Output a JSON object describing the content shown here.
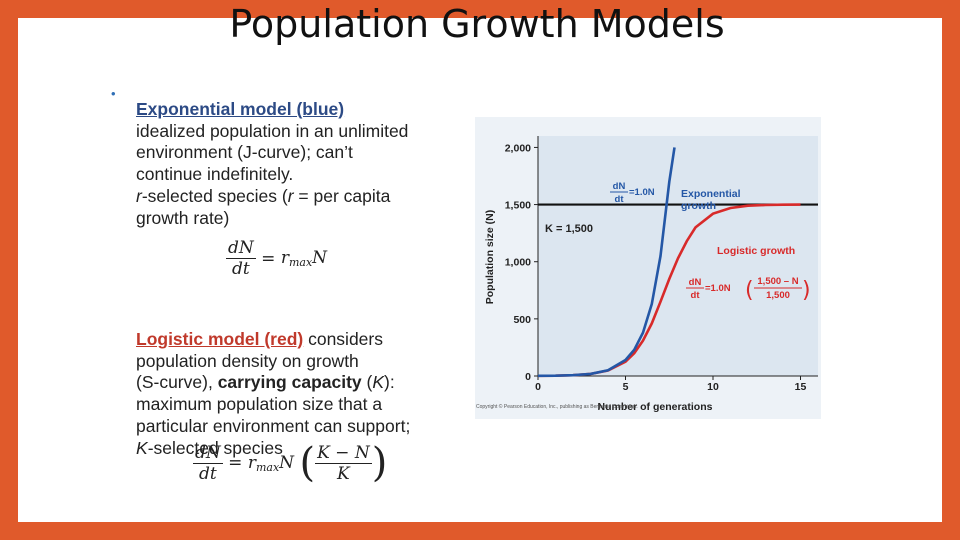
{
  "title": "Population Growth Models",
  "text": {
    "bullet": "•",
    "exp_heading": "Exponential model (blue)",
    "exp_l1": "idealized population in an unlimited",
    "exp_l2": "environment (J-curve); can’t",
    "exp_l3": "continue indefinitely.",
    "exp_l4_r": "r",
    "exp_l4_a": "-selected species (",
    "exp_l4_r2": "r",
    "exp_l4_b": " = per capita",
    "exp_l5": "growth rate)",
    "log_heading": "Logistic model (red)",
    "log_l1_tail": " considers",
    "log_l2": "population density on growth",
    "log_l3_a": "(S-curve), ",
    "log_l3_b": "carrying capacity",
    "log_l3_c": " (",
    "log_l3_k": "K",
    "log_l3_d": "):",
    "log_l4": "maximum population size that a",
    "log_l5": "particular environment can support;",
    "log_l6_k": "K",
    "log_l6_rest": "-selected species"
  },
  "equations": {
    "dN": "dN",
    "dt": "dt",
    "eq_sign": "=",
    "r": "r",
    "max": "max",
    "N": "N",
    "K_minus_N": "K − N",
    "K": "K",
    "lparen": "(",
    "rparen": ")"
  },
  "copyright": "Copyright © Pearson Education, Inc., publishing as Benjamin Cummings.",
  "chart_data": {
    "type": "line",
    "xlabel": "Number of generations",
    "ylabel": "Population size (N)",
    "xlim": [
      0,
      16
    ],
    "ylim": [
      0,
      2100
    ],
    "x_ticks": [
      0,
      5,
      10,
      15
    ],
    "y_ticks": [
      0,
      500,
      1000,
      1500,
      2000
    ],
    "y_tick_labels": [
      "0",
      "500",
      "1,000",
      "1,500",
      "2,000"
    ],
    "grid": false,
    "carrying_capacity": {
      "value": 1500,
      "label": "K = 1,500"
    },
    "series": [
      {
        "name": "Exponential growth",
        "color": "#2457a6",
        "x": [
          0,
          1,
          2,
          3,
          4,
          5,
          5.5,
          6,
          6.5,
          7,
          7.5,
          7.8
        ],
        "y": [
          2,
          3,
          7,
          18,
          50,
          140,
          230,
          380,
          630,
          1050,
          1700,
          2000
        ]
      },
      {
        "name": "Logistic growth",
        "color": "#d82a2a",
        "x": [
          0,
          1,
          2,
          3,
          4,
          5,
          5.5,
          6,
          6.5,
          7,
          7.5,
          8,
          8.5,
          9,
          10,
          11,
          12,
          13,
          14,
          15
        ],
        "y": [
          2,
          3,
          7,
          18,
          48,
          125,
          200,
          310,
          460,
          650,
          850,
          1030,
          1180,
          1300,
          1420,
          1470,
          1490,
          1496,
          1499,
          1500
        ]
      }
    ],
    "annotations": {
      "exp_label_line1": "Exponential",
      "exp_label_line2": "growth",
      "log_label": "Logistic growth",
      "exp_eq_num": "dN",
      "exp_eq_den": "dt",
      "exp_eq_rhs": "=1.0N",
      "log_eq_rhs": "=1.0N",
      "log_eq_num": "1,500 – N",
      "log_eq_den": "1,500"
    },
    "colors": {
      "plot_bg": "#dce6f0",
      "outer_bg": "#edf2f7",
      "k_line": "#111111",
      "label_blue": "#2457a6",
      "label_red": "#d82a2a"
    }
  }
}
